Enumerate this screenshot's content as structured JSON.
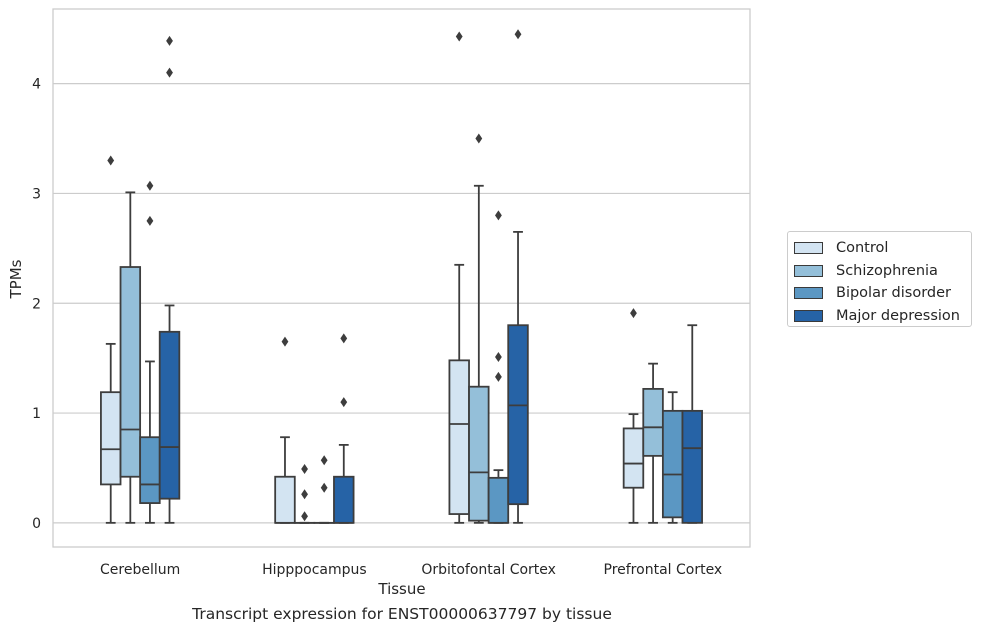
{
  "caption": "Transcript expression for ENST00000637797 by tissue",
  "chart_data": {
    "type": "boxplot",
    "xlabel": "Tissue",
    "ylabel": "TPMs",
    "ylim": [
      -0.22,
      4.68
    ],
    "yticks": [
      0,
      1,
      2,
      3,
      4
    ],
    "grid": "horizontal",
    "legend_position": "right",
    "categories": [
      "Cerebellum",
      "Hipppocampus",
      "Orbitofontal Cortex",
      "Prefrontal Cortex"
    ],
    "series": [
      {
        "name": "Control",
        "color": "#d3e4f2",
        "boxes": [
          {
            "whislo": 0.0,
            "q1": 0.35,
            "med": 0.67,
            "q3": 1.19,
            "whishi": 1.63,
            "fliers": [
              3.3
            ]
          },
          {
            "whislo": 0.0,
            "q1": 0.0,
            "med": 0.0,
            "q3": 0.42,
            "whishi": 0.78,
            "fliers": [
              1.65
            ]
          },
          {
            "whislo": 0.0,
            "q1": 0.08,
            "med": 0.9,
            "q3": 1.48,
            "whishi": 2.35,
            "fliers": [
              4.43
            ]
          },
          {
            "whislo": 0.0,
            "q1": 0.32,
            "med": 0.54,
            "q3": 0.86,
            "whishi": 0.99,
            "fliers": [
              1.91
            ]
          }
        ]
      },
      {
        "name": "Schizophrenia",
        "color": "#94bfd9",
        "boxes": [
          {
            "whislo": 0.0,
            "q1": 0.42,
            "med": 0.85,
            "q3": 2.33,
            "whishi": 3.01,
            "fliers": []
          },
          {
            "whislo": 0.0,
            "q1": 0.0,
            "med": 0.0,
            "q3": 0.0,
            "whishi": 0.0,
            "fliers": [
              0.06,
              0.26,
              0.49
            ]
          },
          {
            "whislo": 0.0,
            "q1": 0.02,
            "med": 0.46,
            "q3": 1.24,
            "whishi": 3.07,
            "fliers": [
              3.5
            ]
          },
          {
            "whislo": 0.0,
            "q1": 0.61,
            "med": 0.87,
            "q3": 1.22,
            "whishi": 1.45,
            "fliers": []
          }
        ]
      },
      {
        "name": "Bipolar disorder",
        "color": "#5b97c3",
        "boxes": [
          {
            "whislo": 0.0,
            "q1": 0.18,
            "med": 0.35,
            "q3": 0.78,
            "whishi": 1.47,
            "fliers": [
              2.75,
              3.07
            ]
          },
          {
            "whislo": 0.0,
            "q1": 0.0,
            "med": 0.0,
            "q3": 0.0,
            "whishi": 0.0,
            "fliers": [
              0.32,
              0.57
            ]
          },
          {
            "whislo": 0.0,
            "q1": 0.0,
            "med": 0.0,
            "q3": 0.41,
            "whishi": 0.48,
            "fliers": [
              1.33,
              1.51,
              2.8
            ]
          },
          {
            "whislo": 0.0,
            "q1": 0.05,
            "med": 0.44,
            "q3": 1.02,
            "whishi": 1.19,
            "fliers": []
          }
        ]
      },
      {
        "name": "Major depression",
        "color": "#2663a6",
        "boxes": [
          {
            "whislo": 0.0,
            "q1": 0.22,
            "med": 0.69,
            "q3": 1.74,
            "whishi": 1.98,
            "fliers": [
              4.1,
              4.39
            ]
          },
          {
            "whislo": 0.0,
            "q1": 0.0,
            "med": 0.0,
            "q3": 0.42,
            "whishi": 0.71,
            "fliers": [
              1.1,
              1.68
            ]
          },
          {
            "whislo": 0.0,
            "q1": 0.17,
            "med": 1.07,
            "q3": 1.8,
            "whishi": 2.65,
            "fliers": [
              4.45
            ]
          },
          {
            "whislo": 0.0,
            "q1": 0.0,
            "med": 0.68,
            "q3": 1.02,
            "whishi": 1.8,
            "fliers": []
          }
        ]
      }
    ]
  }
}
